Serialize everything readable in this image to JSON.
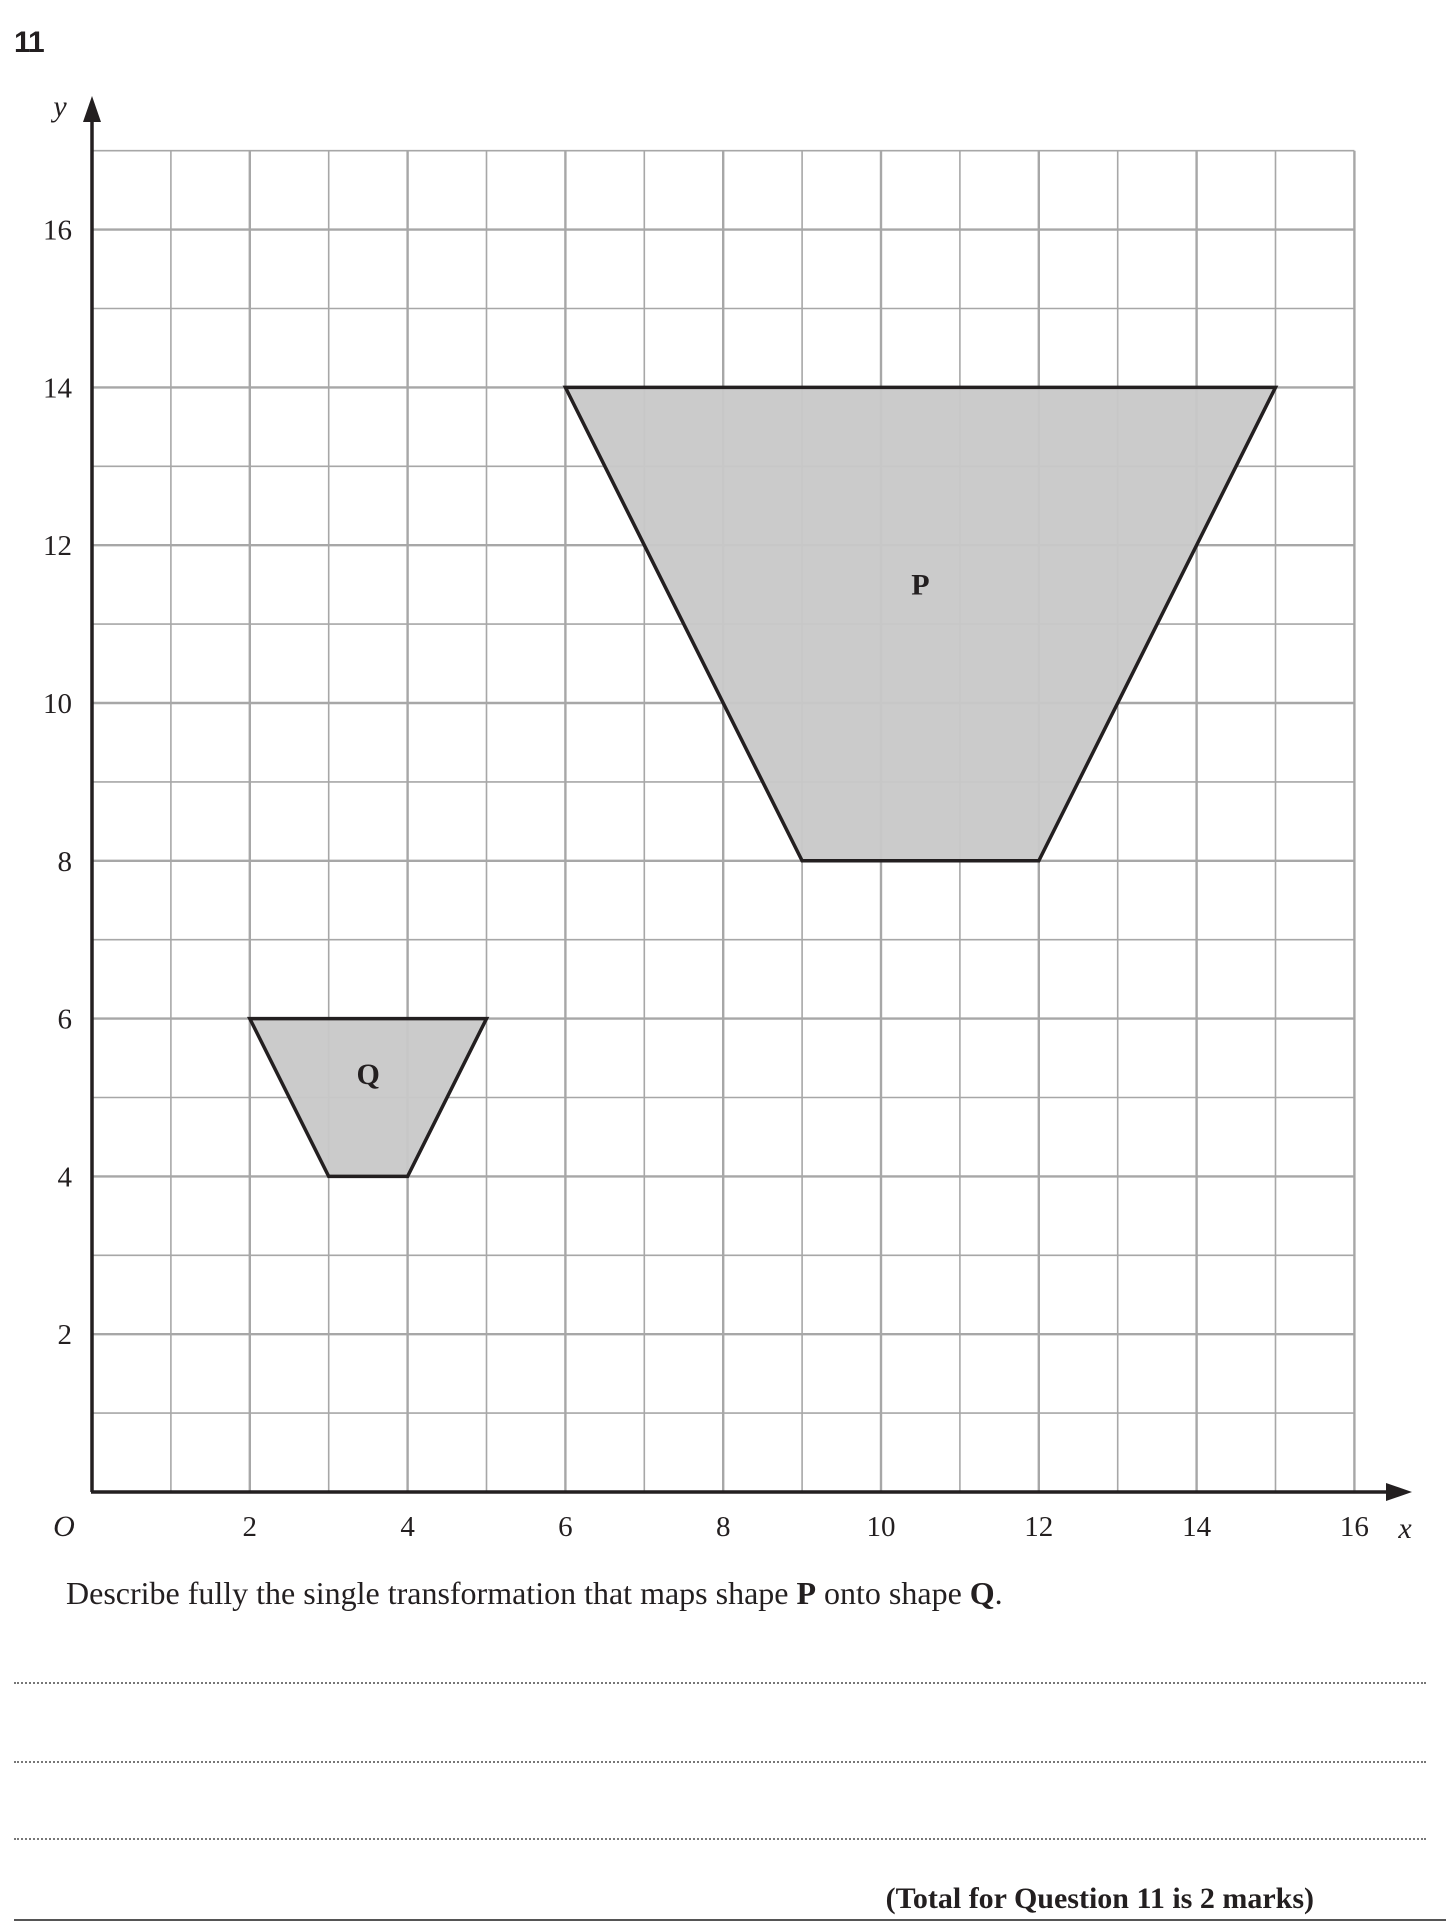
{
  "question": {
    "number": "11",
    "prompt_before": "Describe fully the single transformation that maps shape ",
    "shape_p": "P",
    "prompt_middle": " onto shape ",
    "shape_q": "Q",
    "prompt_after": ".",
    "total": "(Total for Question 11 is 2 marks)",
    "answer_lines": 3
  },
  "chart_data": {
    "type": "coordinate-grid",
    "origin_label": "O",
    "xlabel": "x",
    "ylabel": "y",
    "xlim": [
      0,
      16
    ],
    "ylim": [
      0,
      17
    ],
    "grid": true,
    "x_ticks": [
      "2",
      "4",
      "6",
      "8",
      "10",
      "12",
      "14",
      "16"
    ],
    "y_ticks": [
      "2",
      "4",
      "6",
      "8",
      "10",
      "12",
      "14",
      "16"
    ],
    "shapes": [
      {
        "label": "P",
        "points": [
          [
            6,
            14
          ],
          [
            15,
            14
          ],
          [
            12,
            8
          ],
          [
            9,
            8
          ]
        ],
        "label_at": [
          10.5,
          11.5
        ],
        "fill": "#c8c8c8"
      },
      {
        "label": "Q",
        "points": [
          [
            2,
            6
          ],
          [
            5,
            6
          ],
          [
            4,
            4
          ],
          [
            3,
            4
          ]
        ],
        "label_at": [
          3.5,
          5.3
        ],
        "fill": "#c8c8c8"
      }
    ],
    "colors": {
      "grid": "#a7a7a7",
      "axis": "#231f20",
      "outline": "#231f20"
    }
  }
}
